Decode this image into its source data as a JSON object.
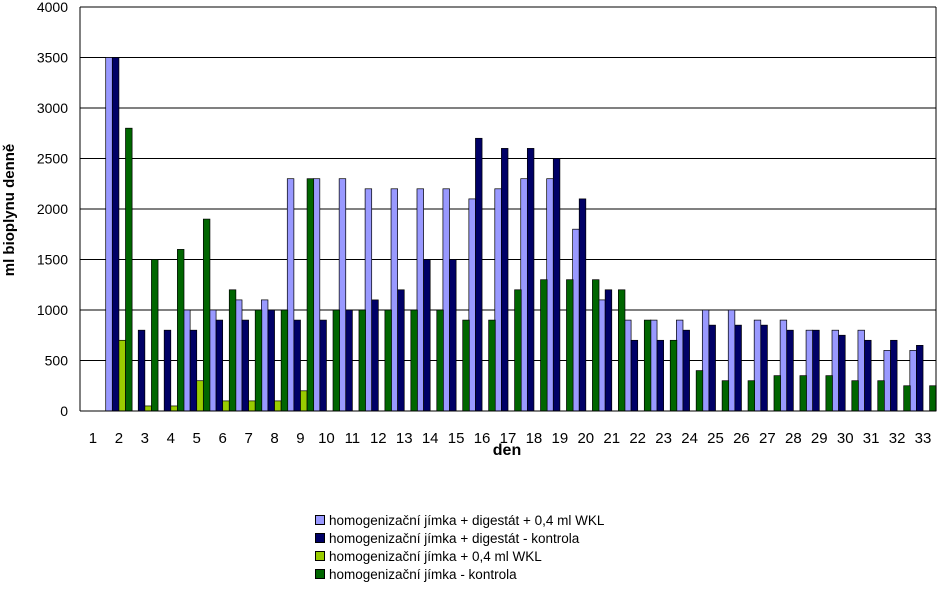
{
  "chart_data": {
    "type": "bar",
    "title": "",
    "xlabel": "den",
    "ylabel": "ml bioplynu denně",
    "ylim": [
      0,
      4000
    ],
    "yticks": [
      0,
      500,
      1000,
      1500,
      2000,
      2500,
      3000,
      3500,
      4000
    ],
    "grid": true,
    "legend_position": "bottom",
    "categories": [
      "1",
      "2",
      "3",
      "4",
      "5",
      "6",
      "7",
      "8",
      "9",
      "10",
      "11",
      "12",
      "13",
      "14",
      "15",
      "16",
      "17",
      "18",
      "19",
      "20",
      "21",
      "22",
      "23",
      "24",
      "25",
      "26",
      "27",
      "28",
      "29",
      "30",
      "31",
      "32",
      "33"
    ],
    "series": [
      {
        "name": "homogenizační jímka + digestát + 0,4 ml WKL",
        "color": "#9999ff",
        "values": [
          0,
          3500,
          0,
          0,
          1000,
          1000,
          1100,
          1100,
          2300,
          2300,
          2300,
          2200,
          2200,
          2200,
          2200,
          2100,
          2200,
          2300,
          2300,
          1800,
          1100,
          900,
          900,
          900,
          1000,
          1000,
          900,
          900,
          800,
          800,
          800,
          600,
          600
        ]
      },
      {
        "name": "homogenizační jímka + digestát - kontrola",
        "color": "#000066",
        "values": [
          0,
          3500,
          800,
          800,
          800,
          900,
          900,
          1000,
          900,
          900,
          1000,
          1100,
          1200,
          1500,
          1500,
          2700,
          2600,
          2600,
          2500,
          2100,
          1200,
          700,
          700,
          800,
          850,
          850,
          850,
          800,
          800,
          750,
          700,
          700,
          650
        ]
      },
      {
        "name": "homogenizační jímka + 0,4 ml WKL",
        "color": "#99cc00",
        "values": [
          0,
          700,
          50,
          50,
          300,
          100,
          100,
          100,
          200,
          0,
          0,
          0,
          0,
          0,
          0,
          0,
          0,
          0,
          0,
          0,
          0,
          0,
          0,
          0,
          0,
          0,
          0,
          0,
          0,
          0,
          0,
          0,
          0
        ]
      },
      {
        "name": "homogenizační jímka - kontrola",
        "color": "#006600",
        "values": [
          0,
          2800,
          1500,
          1600,
          1900,
          1200,
          1000,
          1000,
          2300,
          1000,
          1000,
          1000,
          1000,
          1000,
          900,
          900,
          1200,
          1300,
          1300,
          1300,
          1200,
          900,
          700,
          400,
          300,
          300,
          350,
          350,
          350,
          300,
          300,
          250,
          250
        ]
      }
    ]
  }
}
